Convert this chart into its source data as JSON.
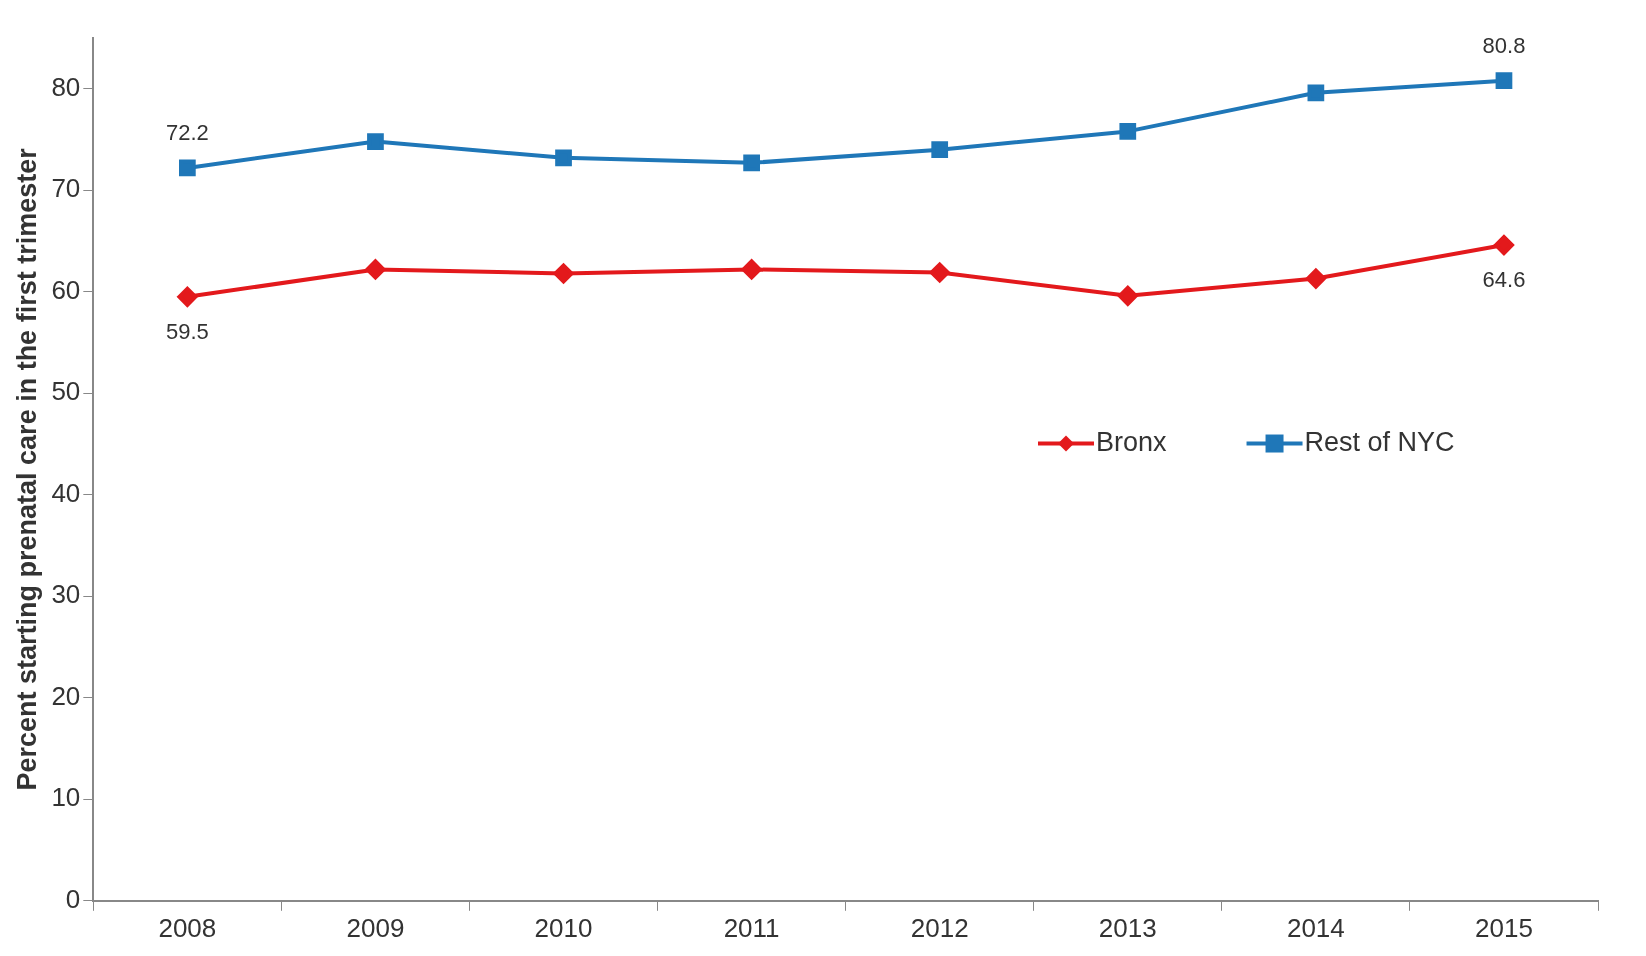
{
  "chart_data": {
    "type": "line",
    "ylabel": "Percent starting prenatal care in the first trimester",
    "categories": [
      "2008",
      "2009",
      "2010",
      "2011",
      "2012",
      "2013",
      "2014",
      "2015"
    ],
    "series": [
      {
        "name": "Bronx",
        "color": "#e3191c",
        "marker": "diamond",
        "values": [
          59.5,
          62.2,
          61.8,
          62.2,
          61.9,
          59.6,
          61.3,
          64.6
        ],
        "value_labels": [
          "59.5",
          null,
          null,
          null,
          null,
          null,
          null,
          "64.6"
        ]
      },
      {
        "name": "Rest of NYC",
        "color": "#1f77b8",
        "marker": "square",
        "values": [
          72.2,
          74.8,
          73.2,
          72.7,
          74.0,
          75.8,
          79.6,
          80.8
        ],
        "value_labels": [
          "72.2",
          null,
          null,
          null,
          null,
          null,
          null,
          "80.8"
        ]
      }
    ],
    "ylim": [
      0,
      85
    ],
    "yticks": [
      0,
      10,
      20,
      30,
      40,
      50,
      60,
      70,
      80
    ],
    "grid": false,
    "legend": "right"
  }
}
